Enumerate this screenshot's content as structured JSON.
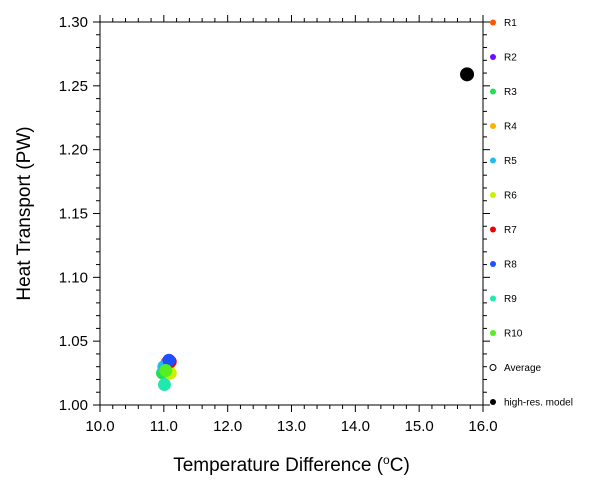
{
  "chart_data": {
    "type": "scatter",
    "title": "",
    "xlabel_main": "Temperature Difference (",
    "xlabel_sup": "o",
    "xlabel_end": "C)",
    "ylabel": "Heat Transport (PW)",
    "xlim": [
      10.0,
      16.0
    ],
    "ylim": [
      1.0,
      1.3
    ],
    "x_ticks": [
      "10.0",
      "11.0",
      "12.0",
      "13.0",
      "14.0",
      "15.0",
      "16.0"
    ],
    "y_ticks": [
      "1.00",
      "1.05",
      "1.10",
      "1.15",
      "1.20",
      "1.25",
      "1.30"
    ],
    "grid": false,
    "legend_position": "right",
    "series": [
      {
        "name": "R1",
        "color": "#ff5500",
        "points": [
          {
            "x": 11.05,
            "y": 1.033
          }
        ]
      },
      {
        "name": "R2",
        "color": "#6a0dff",
        "points": [
          {
            "x": 11.08,
            "y": 1.035
          }
        ]
      },
      {
        "name": "R3",
        "color": "#22dd55",
        "points": [
          {
            "x": 10.98,
            "y": 1.025
          }
        ]
      },
      {
        "name": "R4",
        "color": "#ffb000",
        "points": [
          {
            "x": 11.07,
            "y": 1.027
          }
        ]
      },
      {
        "name": "R5",
        "color": "#22bbee",
        "points": [
          {
            "x": 11.0,
            "y": 1.03
          }
        ]
      },
      {
        "name": "R6",
        "color": "#ccf000",
        "points": [
          {
            "x": 11.1,
            "y": 1.025
          }
        ]
      },
      {
        "name": "R7",
        "color": "#ee0000",
        "points": [
          {
            "x": 11.1,
            "y": 1.034
          }
        ]
      },
      {
        "name": "R8",
        "color": "#1e50ff",
        "points": [
          {
            "x": 11.08,
            "y": 1.035
          }
        ]
      },
      {
        "name": "R9",
        "color": "#22e8b0",
        "points": [
          {
            "x": 11.01,
            "y": 1.016
          }
        ]
      },
      {
        "name": "R10",
        "color": "#55ee22",
        "points": [
          {
            "x": 11.03,
            "y": 1.027
          }
        ]
      },
      {
        "name": "Average",
        "color": "#000000",
        "marker": "open",
        "points": []
      },
      {
        "name": "high-res. model",
        "color": "#000000",
        "points": [
          {
            "x": 15.75,
            "y": 1.259
          }
        ]
      }
    ]
  }
}
